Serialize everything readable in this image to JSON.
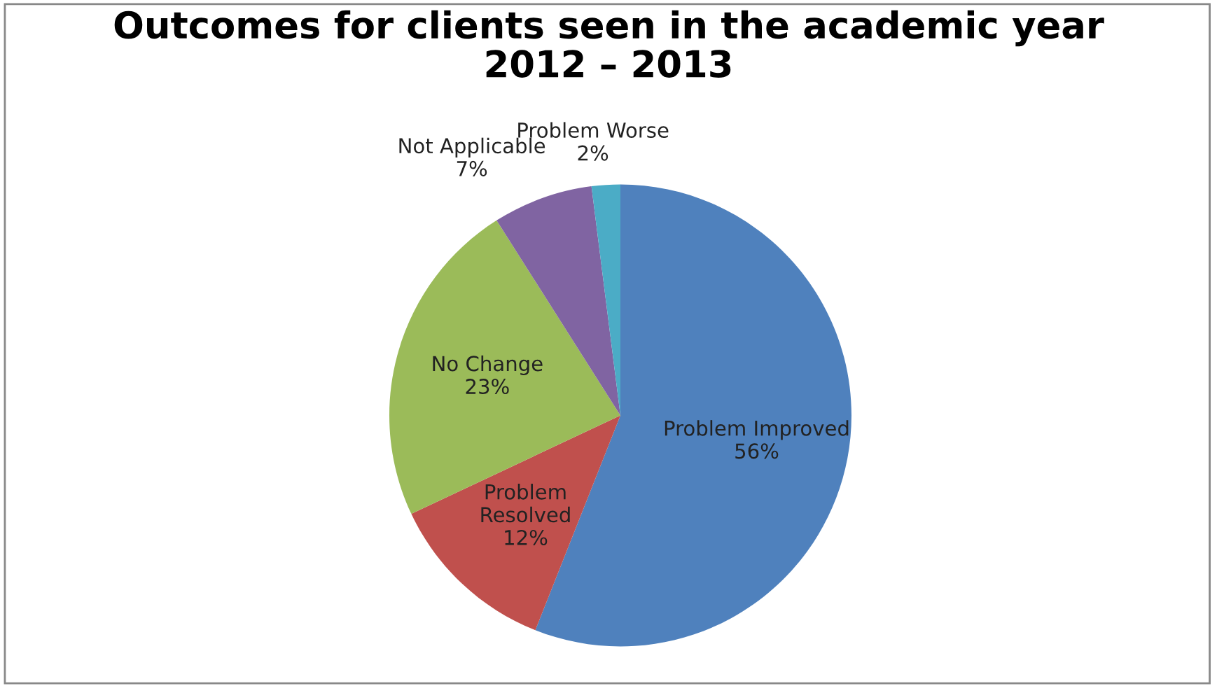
{
  "chart_data": {
    "type": "pie",
    "title": "Outcomes for clients seen in the academic year\n2012 – 2013",
    "categories": [
      "Problem Improved",
      "Problem\nResolved",
      "No Change",
      "Not Applicable",
      "Problem Worse"
    ],
    "values": [
      56,
      12,
      23,
      7,
      2
    ],
    "value_labels": [
      "56%",
      "12%",
      "23%",
      "7%",
      "2%"
    ],
    "colors": [
      "#4f81bd",
      "#c0504d",
      "#9bbb59",
      "#8064a2",
      "#4bacc6"
    ],
    "legend": false
  }
}
